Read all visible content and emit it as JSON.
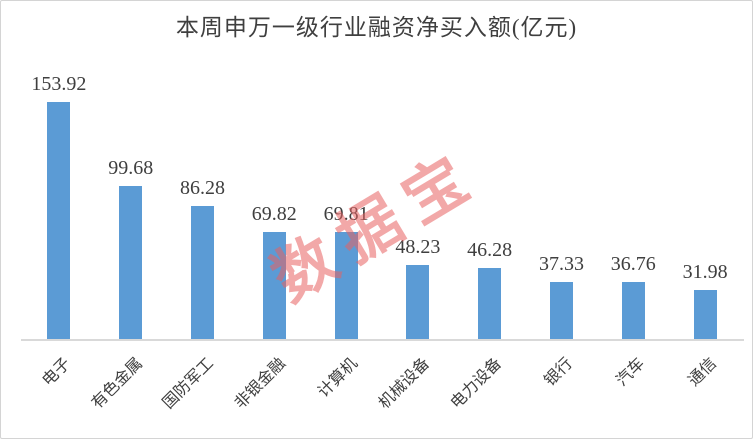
{
  "title": "本周申万一级行业融资净买入额(亿元)",
  "watermark": {
    "text": "数据宝",
    "color": "rgba(231,96,96,0.55)"
  },
  "colors": {
    "bar": "#5b9bd5",
    "text": "#3f3f3f",
    "axis_line": "#d9d9d9",
    "frame_border": "#d4d4d4",
    "background": "#ffffff"
  },
  "chart_data": {
    "type": "bar",
    "title": "本周申万一级行业融资净买入额(亿元)",
    "categories": [
      "电子",
      "有色金属",
      "国防军工",
      "非银金融",
      "计算机",
      "机械设备",
      "电力设备",
      "银行",
      "汽车",
      "通信"
    ],
    "values": [
      153.92,
      99.68,
      86.28,
      69.82,
      69.81,
      48.23,
      46.28,
      37.33,
      36.76,
      31.98
    ],
    "value_labels": [
      "153.92",
      "99.68",
      "86.28",
      "69.82",
      "69.81",
      "48.23",
      "46.28",
      "37.33",
      "36.76",
      "31.98"
    ],
    "xlabel": "",
    "ylabel": "",
    "ylim": [
      0,
      182
    ],
    "grid": false,
    "legend": "none",
    "data_labels_shown": true,
    "category_label_rotation_deg": 45,
    "y_axis_shown": false
  }
}
